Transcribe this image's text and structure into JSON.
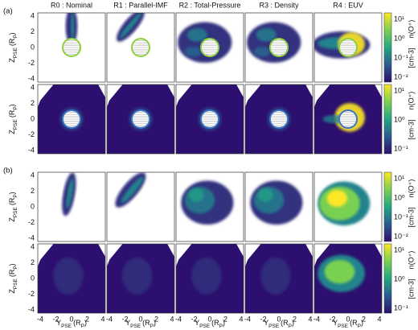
{
  "figure": {
    "panel_labels": [
      "(a)",
      "(b)"
    ],
    "columns": [
      "R0 : Nominal",
      "R1 : Parallel-IMF",
      "R2 : Total-Pressure",
      "R3 : Density",
      "R4 : EUV"
    ],
    "y_axis": {
      "main": "Z",
      "sub": "PSE",
      "unit": "(R",
      "unit_sub": "P",
      "close": ")"
    },
    "x_axis": {
      "main": "Y",
      "sub": "PSE",
      "unit": "(R",
      "unit_sub": "P",
      "close": ")"
    },
    "y_ticks": [
      "4",
      "2",
      "0",
      "-2",
      "-4"
    ],
    "x_ticks": [
      "-4",
      "-2",
      "0",
      "2",
      "4"
    ],
    "rows": [
      {
        "colorbar_label": "n(O⁺)",
        "colorbar_unit": "[cm-3]",
        "colorbar_ticks": [
          "10¹",
          "10⁰",
          "10⁻¹",
          "10⁻²"
        ]
      },
      {
        "colorbar_label": "n(O⁺)",
        "colorbar_unit": "[cm-3]",
        "colorbar_ticks": [
          "10¹",
          "10⁰",
          "10⁻¹"
        ]
      },
      {
        "colorbar_label": "n(O⁺)",
        "colorbar_unit": "[cm-3]",
        "colorbar_ticks": [
          "10¹",
          "10⁰",
          "10⁻¹",
          "10⁻²"
        ]
      },
      {
        "colorbar_label": "n(O⁺)",
        "colorbar_unit": "[cm-3]",
        "colorbar_ticks": [
          "10¹",
          "10⁰",
          "10⁻¹"
        ]
      }
    ]
  }
}
